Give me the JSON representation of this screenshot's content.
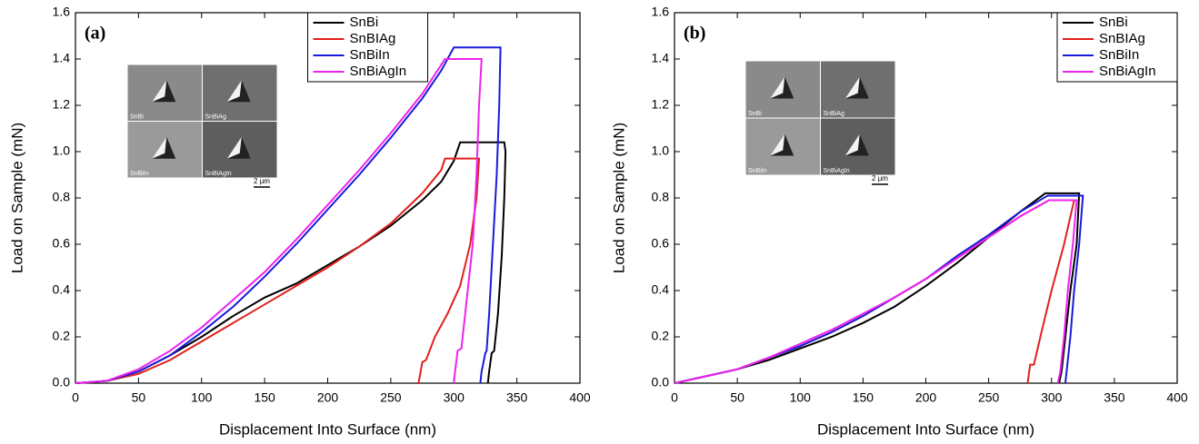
{
  "chart_data": [
    {
      "type": "line",
      "panel_label": "(a)",
      "xlabel": "Displacement Into Surface (nm)",
      "ylabel": "Load on Sample (mN)",
      "xlim": [
        0,
        400
      ],
      "ylim": [
        0,
        1.6
      ],
      "xticks": [
        0,
        50,
        100,
        150,
        200,
        250,
        300,
        350,
        400
      ],
      "yticks": [
        {
          "value": 0,
          "label": "0.0"
        },
        0.2,
        0.4,
        0.6,
        0.8,
        {
          "value": 1,
          "label": "1.0"
        },
        1.2,
        1.4,
        1.6
      ],
      "legend": "upper center",
      "inset": {
        "labels": [
          "SnBi",
          "SnBiAg",
          "SnBiIn",
          "SnBiAgIn"
        ],
        "scale_bar": "2 µm"
      },
      "series": [
        {
          "name": "SnBi",
          "color": "#000000",
          "x": [
            0,
            25,
            50,
            75,
            100,
            125,
            150,
            175,
            200,
            225,
            250,
            275,
            290,
            300,
            305,
            335,
            340,
            341,
            340,
            338,
            335,
            332,
            330,
            328,
            327
          ],
          "values": [
            0,
            0.01,
            0.05,
            0.12,
            0.2,
            0.29,
            0.37,
            0.43,
            0.51,
            0.59,
            0.68,
            0.79,
            0.87,
            0.96,
            1.04,
            1.04,
            1.04,
            1.0,
            0.8,
            0.55,
            0.3,
            0.14,
            0.13,
            0.05,
            0
          ]
        },
        {
          "name": "SnBIAg",
          "color": "#e0201c",
          "x": [
            0,
            25,
            50,
            75,
            100,
            125,
            150,
            175,
            200,
            225,
            250,
            275,
            290,
            293,
            320,
            318,
            313,
            305,
            295,
            285,
            278,
            275,
            272,
            271
          ],
          "values": [
            0,
            0.01,
            0.04,
            0.1,
            0.18,
            0.26,
            0.34,
            0.42,
            0.5,
            0.59,
            0.69,
            0.82,
            0.92,
            0.97,
            0.97,
            0.8,
            0.6,
            0.42,
            0.3,
            0.2,
            0.1,
            0.09,
            0,
            0
          ]
        },
        {
          "name": "SnBiIn",
          "color": "#1a1adb",
          "x": [
            0,
            25,
            50,
            75,
            100,
            125,
            150,
            175,
            200,
            225,
            250,
            275,
            290,
            300,
            335,
            337,
            336,
            334,
            331,
            328,
            326,
            325,
            322,
            321
          ],
          "values": [
            0,
            0.01,
            0.05,
            0.12,
            0.22,
            0.33,
            0.46,
            0.6,
            0.75,
            0.9,
            1.06,
            1.23,
            1.35,
            1.45,
            1.45,
            1.45,
            1.2,
            0.9,
            0.6,
            0.3,
            0.14,
            0.13,
            0.05,
            0
          ]
        },
        {
          "name": "SnBiAgIn",
          "color": "#ee22ee",
          "x": [
            0,
            25,
            50,
            75,
            100,
            125,
            150,
            175,
            200,
            225,
            250,
            275,
            293,
            322,
            320,
            318,
            315,
            310,
            306,
            303,
            301,
            300
          ],
          "values": [
            0,
            0.01,
            0.06,
            0.14,
            0.24,
            0.36,
            0.48,
            0.62,
            0.77,
            0.92,
            1.08,
            1.25,
            1.4,
            1.4,
            1.2,
            0.9,
            0.6,
            0.35,
            0.15,
            0.14,
            0.05,
            0
          ]
        }
      ]
    },
    {
      "type": "line",
      "panel_label": "(b)",
      "xlabel": "Displacement Into Surface (nm)",
      "ylabel": "Load on Sample (mN)",
      "xlim": [
        0,
        400
      ],
      "ylim": [
        0,
        1.6
      ],
      "xticks": [
        0,
        50,
        100,
        150,
        200,
        250,
        300,
        350,
        400
      ],
      "yticks": [
        {
          "value": 0,
          "label": "0.0"
        },
        0.2,
        0.4,
        0.6,
        0.8,
        {
          "value": 1,
          "label": "1.0"
        },
        1.2,
        1.4,
        1.6
      ],
      "legend": "upper right",
      "inset": {
        "labels": [
          "SnBi",
          "SnBiAg",
          "SnBiIn",
          "SnBiAgIn"
        ],
        "scale_bar": "2 µm"
      },
      "series": [
        {
          "name": "SnBi",
          "color": "#000000",
          "x": [
            0,
            25,
            50,
            75,
            100,
            125,
            150,
            175,
            200,
            225,
            250,
            275,
            295,
            322,
            320,
            315,
            311,
            308,
            306
          ],
          "values": [
            0,
            0.03,
            0.06,
            0.1,
            0.15,
            0.2,
            0.26,
            0.33,
            0.42,
            0.52,
            0.63,
            0.74,
            0.82,
            0.82,
            0.6,
            0.4,
            0.2,
            0.05,
            0
          ]
        },
        {
          "name": "SnBIAg",
          "color": "#e0201c",
          "x": [
            0,
            25,
            50,
            75,
            100,
            125,
            150,
            175,
            200,
            225,
            250,
            275,
            298,
            318,
            310,
            300,
            292,
            286,
            283,
            281
          ],
          "values": [
            0,
            0.03,
            0.06,
            0.11,
            0.16,
            0.22,
            0.29,
            0.37,
            0.45,
            0.54,
            0.63,
            0.72,
            0.79,
            0.79,
            0.6,
            0.4,
            0.22,
            0.08,
            0.08,
            0
          ]
        },
        {
          "name": "SnBiIn",
          "color": "#1a1adb",
          "x": [
            0,
            25,
            50,
            75,
            100,
            125,
            150,
            175,
            200,
            225,
            250,
            275,
            297,
            325,
            322,
            318,
            315,
            312,
            311
          ],
          "values": [
            0,
            0.03,
            0.06,
            0.11,
            0.16,
            0.22,
            0.29,
            0.37,
            0.45,
            0.55,
            0.64,
            0.74,
            0.81,
            0.81,
            0.6,
            0.4,
            0.2,
            0.05,
            0
          ]
        },
        {
          "name": "SnBiAgIn",
          "color": "#ee22ee",
          "x": [
            0,
            25,
            50,
            75,
            100,
            125,
            150,
            175,
            200,
            225,
            250,
            275,
            298,
            320,
            317,
            313,
            310,
            307,
            305
          ],
          "values": [
            0,
            0.03,
            0.06,
            0.11,
            0.17,
            0.23,
            0.3,
            0.37,
            0.45,
            0.54,
            0.63,
            0.72,
            0.79,
            0.79,
            0.6,
            0.4,
            0.2,
            0.05,
            0
          ]
        }
      ]
    }
  ]
}
